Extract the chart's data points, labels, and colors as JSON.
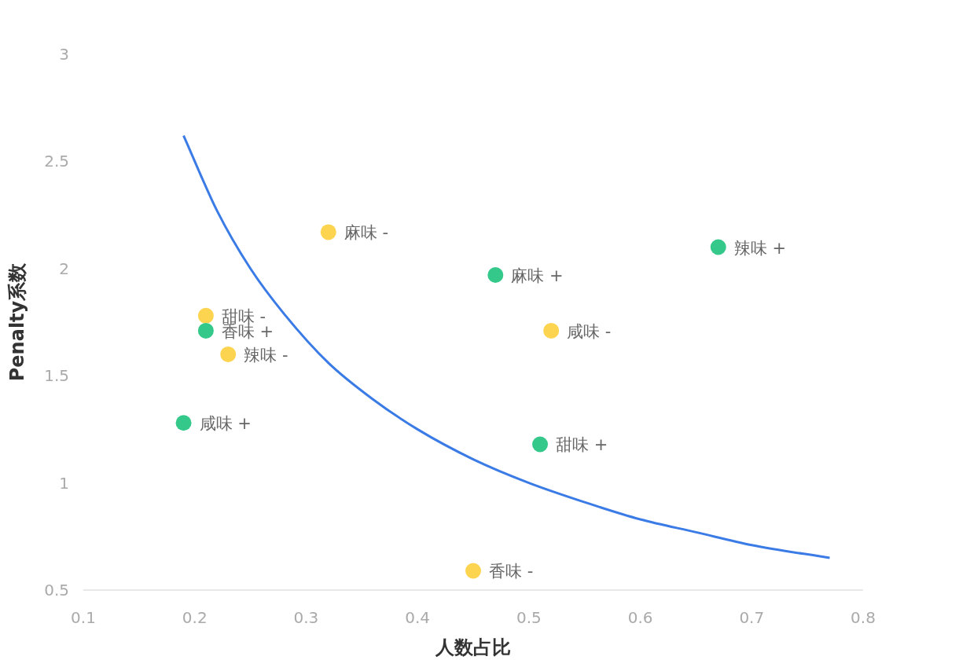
{
  "chart_data": {
    "type": "scatter",
    "xlabel": "人数占比",
    "ylabel": "Penalty系数",
    "xlim": [
      0.1,
      0.8
    ],
    "ylim": [
      0.5,
      3
    ],
    "xticks": [
      0.1,
      0.2,
      0.3,
      0.4,
      0.5,
      0.6,
      0.7,
      0.8
    ],
    "yticks": [
      0.5,
      1,
      1.5,
      2,
      2.5,
      3
    ],
    "marker": "circle",
    "series": [
      {
        "color": "#fdd44f",
        "x": [
          0.32,
          0.21,
          0.23,
          0.52,
          0.45
        ],
        "values": [
          2.17,
          1.78,
          1.6,
          1.71,
          0.59
        ]
      },
      {
        "color": "#34c98a",
        "x": [
          0.67,
          0.47,
          0.21,
          0.19,
          0.51
        ],
        "values": [
          2.1,
          1.97,
          1.71,
          1.28,
          1.18
        ]
      },
      {
        "type": "line",
        "color": "#3b7be6",
        "marker": "none",
        "line_style": "solid",
        "x": [
          0.19,
          0.22,
          0.25,
          0.28,
          0.32,
          0.36,
          0.4,
          0.45,
          0.5,
          0.55,
          0.6,
          0.65,
          0.7,
          0.77
        ],
        "values": [
          2.62,
          2.27,
          2.0,
          1.79,
          1.56,
          1.39,
          1.25,
          1.11,
          1.0,
          0.91,
          0.83,
          0.77,
          0.71,
          0.65
        ]
      }
    ],
    "annotations": [
      {
        "text": "麻味 -",
        "x": 0.32,
        "y": 2.17
      },
      {
        "text": "甜味 -",
        "x": 0.21,
        "y": 1.78
      },
      {
        "text": "辣味 -",
        "x": 0.23,
        "y": 1.6
      },
      {
        "text": "咸味 -",
        "x": 0.52,
        "y": 1.71
      },
      {
        "text": "香味 -",
        "x": 0.45,
        "y": 0.59
      },
      {
        "text": "辣味 +",
        "x": 0.67,
        "y": 2.1
      },
      {
        "text": "麻味 +",
        "x": 0.47,
        "y": 1.97
      },
      {
        "text": "香味 +",
        "x": 0.21,
        "y": 1.71
      },
      {
        "text": "咸味 +",
        "x": 0.19,
        "y": 1.28
      },
      {
        "text": "甜味 +",
        "x": 0.51,
        "y": 1.18
      }
    ]
  }
}
